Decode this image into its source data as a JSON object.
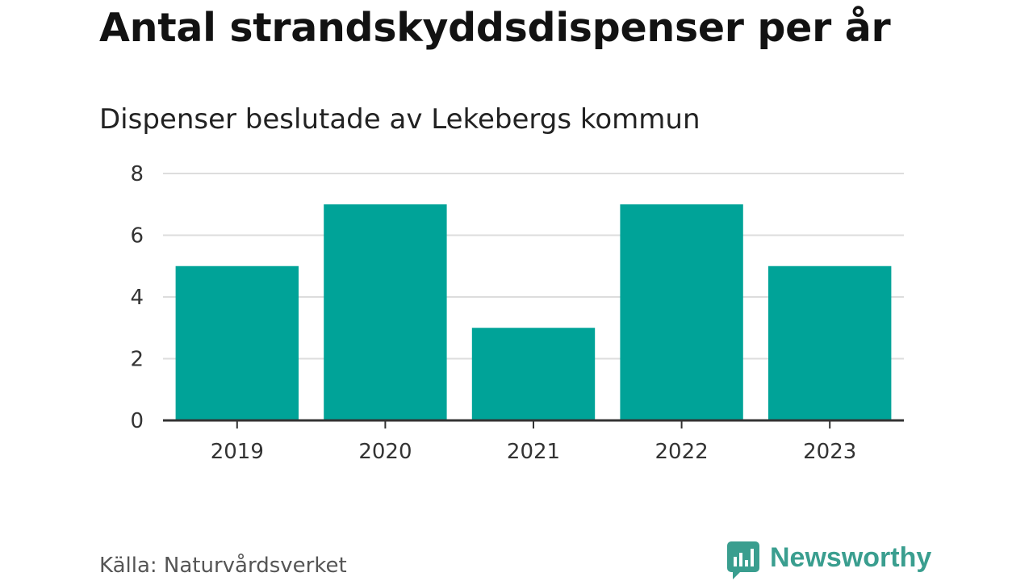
{
  "chart_data": {
    "type": "bar",
    "title": "Antal strandskyddsdispenser per år",
    "subtitle": "Dispenser beslutade av Lekebergs kommun",
    "categories": [
      "2019",
      "2020",
      "2021",
      "2022",
      "2023"
    ],
    "values": [
      5,
      7,
      3,
      7,
      5
    ],
    "xlabel": "",
    "ylabel": "",
    "ylim": [
      0,
      8
    ],
    "yticks": [
      0,
      2,
      4,
      6,
      8
    ],
    "grid": true,
    "bar_color": "#00a398"
  },
  "footer": {
    "source": "Källa: Naturvårdsverket",
    "brand": "Newsworthy",
    "brand_color": "#3a9e8f"
  }
}
